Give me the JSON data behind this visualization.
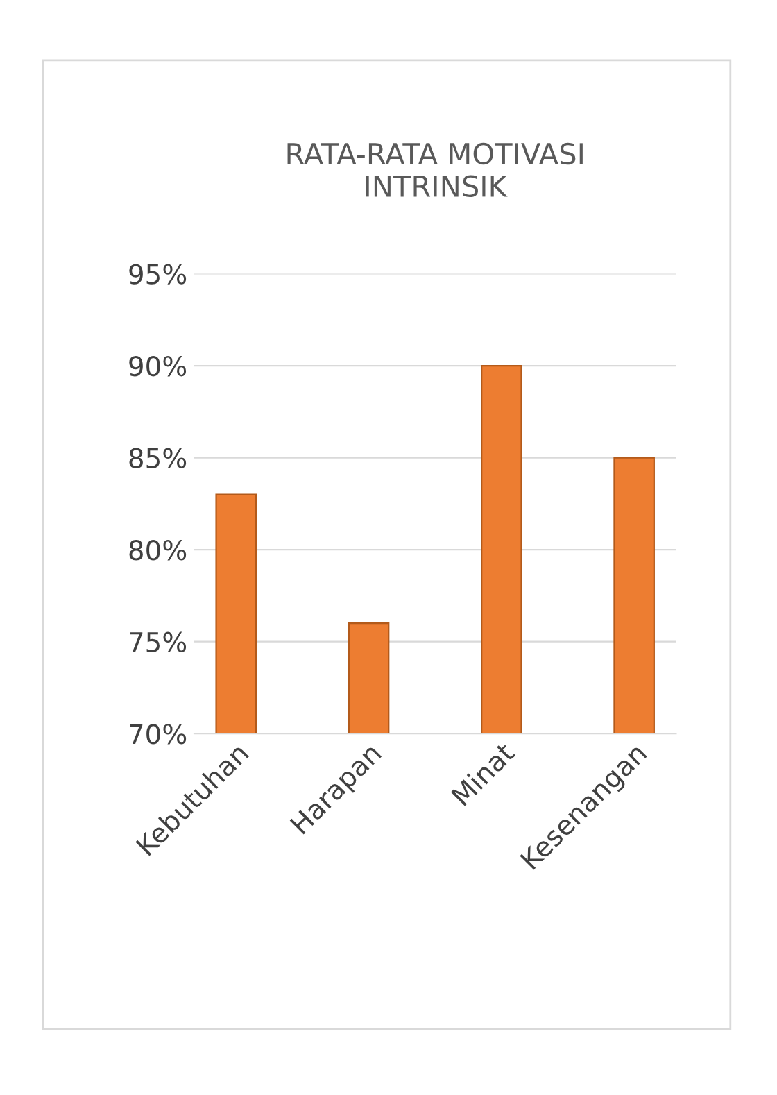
{
  "chart_data": {
    "type": "bar",
    "title": "RATA-RATA MOTIVASI\nINTRINSIK",
    "categories": [
      "Kebutuhan",
      "Harapan",
      "Minat",
      "Kesenangan"
    ],
    "values": [
      83,
      76,
      90,
      85
    ],
    "color": "#ed7d31",
    "ylim": [
      70,
      95
    ],
    "yticks": [
      {
        "value": 70,
        "label": "70%"
      },
      {
        "value": 75,
        "label": "75%"
      },
      {
        "value": 80,
        "label": "80%"
      },
      {
        "value": 85,
        "label": "85%"
      },
      {
        "value": 90,
        "label": "90%"
      },
      {
        "value": 95,
        "label": "95%"
      }
    ],
    "grid": "y"
  }
}
